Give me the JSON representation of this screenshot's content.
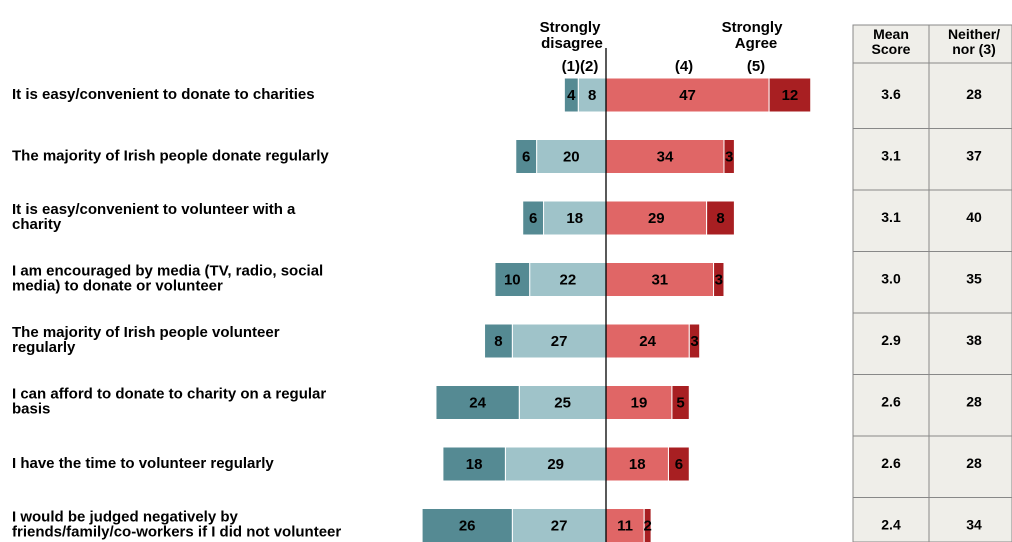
{
  "chart_data": {
    "type": "bar",
    "layout": "diverging-stacked-horizontal",
    "categories": [
      [
        "It is easy/convenient to donate to charities"
      ],
      [
        "The majority of Irish people donate regularly"
      ],
      [
        "It is easy/convenient to volunteer with a",
        "charity"
      ],
      [
        "I am encouraged by media (TV, radio, social",
        "media) to donate or volunteer"
      ],
      [
        "The majority of Irish people volunteer",
        "regularly"
      ],
      [
        "I can afford to donate to charity on a regular",
        "basis"
      ],
      [
        "I have the time to volunteer regularly"
      ],
      [
        "I would be judged negatively by",
        "friends/family/co-workers if I did not volunteer"
      ]
    ],
    "series": [
      {
        "label": "(1)",
        "color": "#558a93",
        "values": [
          4,
          6,
          6,
          10,
          8,
          24,
          18,
          26
        ]
      },
      {
        "label": "(2)",
        "color": "#9fc3c9",
        "values": [
          8,
          20,
          18,
          22,
          27,
          25,
          29,
          27
        ]
      },
      {
        "label": "(4)",
        "color": "#e06666",
        "values": [
          47,
          34,
          29,
          31,
          24,
          19,
          18,
          11
        ]
      },
      {
        "label": "(5)",
        "color": "#a81f22",
        "values": [
          12,
          3,
          8,
          3,
          3,
          5,
          6,
          2
        ]
      }
    ],
    "headers": {
      "disagree": [
        "Strongly",
        "disagree"
      ],
      "disagree_codes": "(1)(2)",
      "agree": [
        "Strongly",
        "Agree"
      ],
      "agree_code_4": "(4)",
      "agree_code_5": "(5)"
    },
    "table": {
      "columns": [
        [
          "Mean",
          "Score"
        ],
        [
          "Neither/",
          "nor (3)"
        ]
      ],
      "mean_score": [
        "3.6",
        "3.1",
        "3.1",
        "3.0",
        "2.9",
        "2.6",
        "2.6",
        "2.4"
      ],
      "neither": [
        "28",
        "37",
        "40",
        "35",
        "38",
        "28",
        "28",
        "34"
      ]
    }
  }
}
